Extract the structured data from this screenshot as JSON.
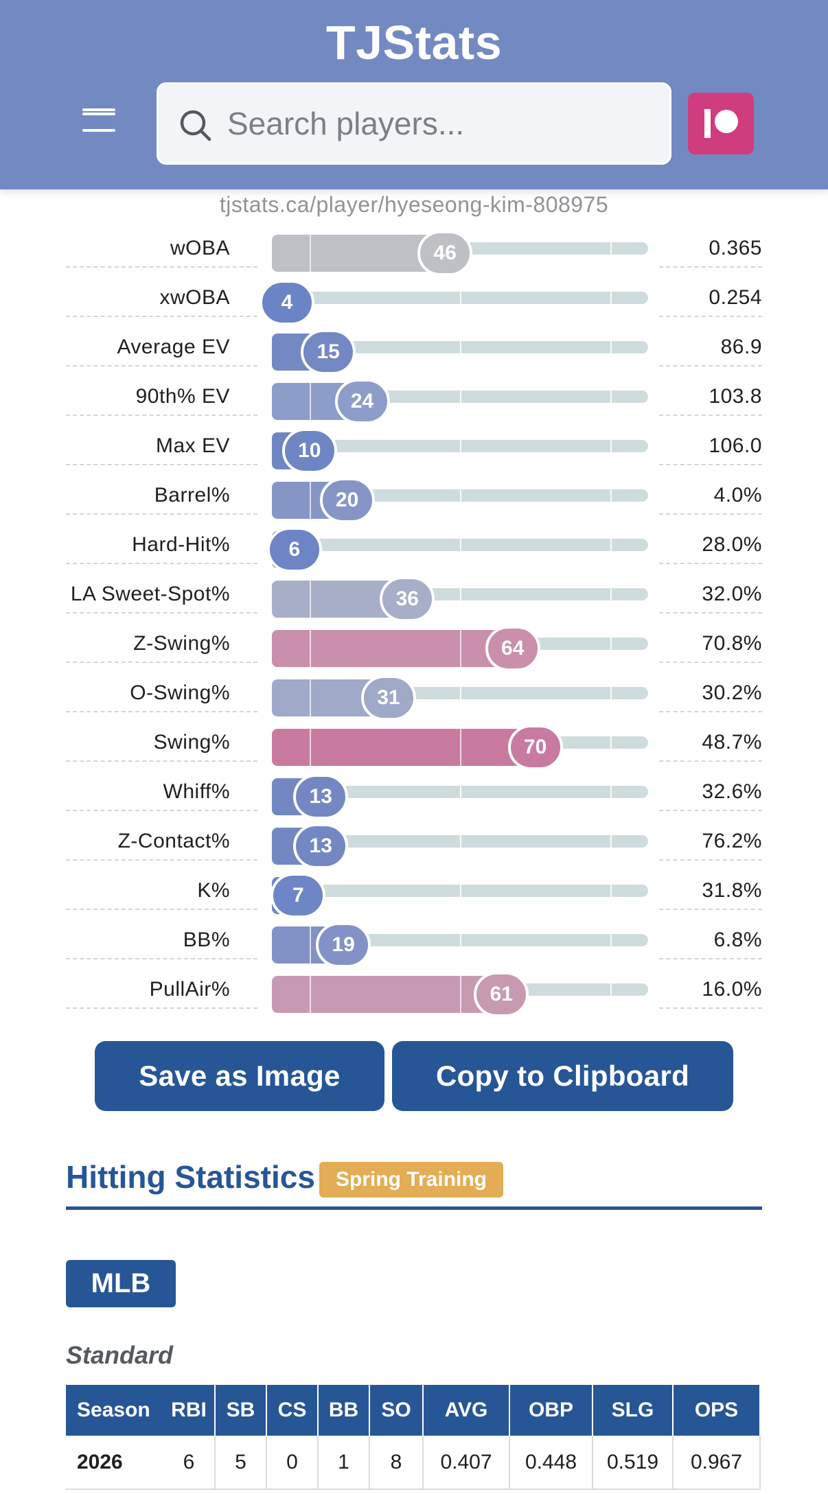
{
  "header": {
    "title": "TJStats",
    "search_placeholder": "Search players...",
    "menu_icon": "hamburger-menu-icon",
    "patreon_icon": "patreon-icon"
  },
  "url": "tjstats.ca/player/hyeseong-kim-808975",
  "percentiles": [
    {
      "label": "wOBA",
      "percentile": 46,
      "value": "0.365",
      "color": "#bfc0c5"
    },
    {
      "label": "xwOBA",
      "percentile": 4,
      "value": "0.254",
      "color": "#6b84c5"
    },
    {
      "label": "Average EV",
      "percentile": 15,
      "value": "86.9",
      "color": "#7488c3"
    },
    {
      "label": "90th% EV",
      "percentile": 24,
      "value": "103.8",
      "color": "#8d9dc9"
    },
    {
      "label": "Max EV",
      "percentile": 10,
      "value": "106.0",
      "color": "#6f86c4"
    },
    {
      "label": "Barrel%",
      "percentile": 20,
      "value": "4.0%",
      "color": "#8596c6"
    },
    {
      "label": "Hard-Hit%",
      "percentile": 6,
      "value": "28.0%",
      "color": "#6d85c5"
    },
    {
      "label": "LA Sweet-Spot%",
      "percentile": 36,
      "value": "32.0%",
      "color": "#a7aec7"
    },
    {
      "label": "Z-Swing%",
      "percentile": 64,
      "value": "70.8%",
      "color": "#c98fab"
    },
    {
      "label": "O-Swing%",
      "percentile": 31,
      "value": "30.2%",
      "color": "#9fa9c8"
    },
    {
      "label": "Swing%",
      "percentile": 70,
      "value": "48.7%",
      "color": "#c97aa0"
    },
    {
      "label": "Whiff%",
      "percentile": 13,
      "value": "32.6%",
      "color": "#7388c3"
    },
    {
      "label": "Z-Contact%",
      "percentile": 13,
      "value": "76.2%",
      "color": "#7388c3"
    },
    {
      "label": "K%",
      "percentile": 7,
      "value": "31.8%",
      "color": "#6d86c5"
    },
    {
      "label": "BB%",
      "percentile": 19,
      "value": "6.8%",
      "color": "#8292c6"
    },
    {
      "label": "PullAir%",
      "percentile": 61,
      "value": "16.0%",
      "color": "#c79ab2"
    }
  ],
  "buttons": {
    "save": "Save as Image",
    "copy": "Copy to Clipboard"
  },
  "hitting": {
    "title": "Hitting Statistics",
    "badge": "Spring Training",
    "league_button": "MLB",
    "subheading": "Standard",
    "columns": [
      "Season",
      "RBI",
      "SB",
      "CS",
      "BB",
      "SO",
      "AVG",
      "OBP",
      "SLG",
      "OPS"
    ],
    "rows": [
      [
        "2026",
        "6",
        "5",
        "0",
        "1",
        "8",
        "0.407",
        "0.448",
        "0.519",
        "0.967"
      ]
    ]
  }
}
